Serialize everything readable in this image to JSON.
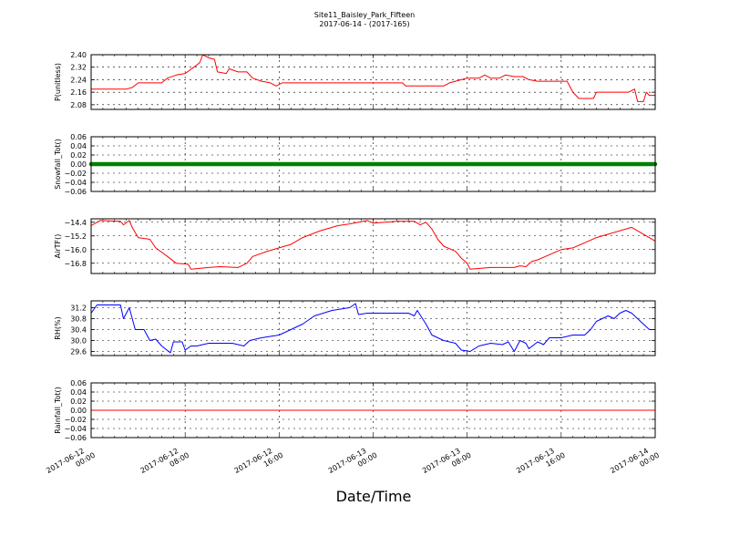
{
  "title_line1": "Site11_Baisley_Park_Fifteen",
  "title_line2": "2017-06-14 - (2017-165)",
  "chart_data": {
    "type": "line",
    "xlabel": "Date/Time",
    "x_range": [
      "2017-06-12 00:00",
      "2017-06-14 00:00"
    ],
    "x_ticks": [
      [
        "2017-06-12",
        "00:00"
      ],
      [
        "2017-06-12",
        "08:00"
      ],
      [
        "2017-06-12",
        "16:00"
      ],
      [
        "2017-06-13",
        "00:00"
      ],
      [
        "2017-06-13",
        "08:00"
      ],
      [
        "2017-06-13",
        "16:00"
      ],
      [
        "2017-06-14",
        "00:00"
      ]
    ],
    "grid": true,
    "panels": [
      {
        "ylabel": "P(unitless)",
        "ylim": [
          2.05,
          2.4
        ],
        "yticks": [
          "2.40",
          "2.32",
          "2.24",
          "2.16",
          "2.08"
        ],
        "color": "#ff0000",
        "points": [
          [
            "2017-06-12 00:00",
            2.18
          ],
          [
            "2017-06-12 03:00",
            2.18
          ],
          [
            "2017-06-12 03:30",
            2.19
          ],
          [
            "2017-06-12 04:00",
            2.22
          ],
          [
            "2017-06-12 06:00",
            2.22
          ],
          [
            "2017-06-12 06:30",
            2.25
          ],
          [
            "2017-06-12 07:15",
            2.27
          ],
          [
            "2017-06-12 08:00",
            2.28
          ],
          [
            "2017-06-12 08:45",
            2.32
          ],
          [
            "2017-06-12 09:15",
            2.35
          ],
          [
            "2017-06-12 09:30",
            2.4
          ],
          [
            "2017-06-12 10:00",
            2.38
          ],
          [
            "2017-06-12 10:30",
            2.37
          ],
          [
            "2017-06-12 10:45",
            2.29
          ],
          [
            "2017-06-12 11:30",
            2.28
          ],
          [
            "2017-06-12 11:45",
            2.31
          ],
          [
            "2017-06-12 12:30",
            2.29
          ],
          [
            "2017-06-12 13:15",
            2.29
          ],
          [
            "2017-06-12 13:45",
            2.25
          ],
          [
            "2017-06-12 14:30",
            2.23
          ],
          [
            "2017-06-12 15:15",
            2.22
          ],
          [
            "2017-06-12 15:45",
            2.2
          ],
          [
            "2017-06-12 16:15",
            2.22
          ],
          [
            "2017-06-12 20:00",
            2.22
          ],
          [
            "2017-06-13 02:30",
            2.22
          ],
          [
            "2017-06-13 02:45",
            2.2
          ],
          [
            "2017-06-13 06:00",
            2.2
          ],
          [
            "2017-06-13 06:30",
            2.22
          ],
          [
            "2017-06-13 07:30",
            2.24
          ],
          [
            "2017-06-13 08:00",
            2.25
          ],
          [
            "2017-06-13 09:00",
            2.25
          ],
          [
            "2017-06-13 09:30",
            2.27
          ],
          [
            "2017-06-13 10:00",
            2.25
          ],
          [
            "2017-06-13 10:45",
            2.25
          ],
          [
            "2017-06-13 11:15",
            2.27
          ],
          [
            "2017-06-13 12:00",
            2.26
          ],
          [
            "2017-06-13 12:45",
            2.26
          ],
          [
            "2017-06-13 13:15",
            2.24
          ],
          [
            "2017-06-13 14:00",
            2.23
          ],
          [
            "2017-06-13 16:30",
            2.23
          ],
          [
            "2017-06-13 17:00",
            2.16
          ],
          [
            "2017-06-13 17:30",
            2.12
          ],
          [
            "2017-06-13 18:45",
            2.12
          ],
          [
            "2017-06-13 19:00",
            2.16
          ],
          [
            "2017-06-13 21:45",
            2.16
          ],
          [
            "2017-06-13 22:15",
            2.18
          ],
          [
            "2017-06-13 22:30",
            2.1
          ],
          [
            "2017-06-13 23:00",
            2.1
          ],
          [
            "2017-06-13 23:15",
            2.16
          ],
          [
            "2017-06-13 23:30",
            2.14
          ],
          [
            "2017-06-14 00:00",
            2.14
          ]
        ]
      },
      {
        "ylabel": "Snowfall_Tot()",
        "ylim": [
          -0.06,
          0.06
        ],
        "yticks": [
          "0.06",
          "0.04",
          "0.02",
          "0.00",
          "−0.02",
          "−0.04",
          "−0.06"
        ],
        "color": "#008000",
        "marker": "dot",
        "points": [
          [
            "2017-06-12 00:00",
            0.0
          ],
          [
            "2017-06-14 00:00",
            0.0
          ]
        ]
      },
      {
        "ylabel": "AirTF()",
        "ylim": [
          -17.4,
          -14.2
        ],
        "yticks": [
          "−14.4",
          "−15.2",
          "−16.0",
          "−16.8"
        ],
        "color": "#ff0000",
        "points": [
          [
            "2017-06-12 00:00",
            -14.6
          ],
          [
            "2017-06-12 00:45",
            -14.3
          ],
          [
            "2017-06-12 02:30",
            -14.35
          ],
          [
            "2017-06-12 02:45",
            -14.55
          ],
          [
            "2017-06-12 03:15",
            -14.3
          ],
          [
            "2017-06-12 03:30",
            -14.7
          ],
          [
            "2017-06-12 04:00",
            -15.3
          ],
          [
            "2017-06-12 05:00",
            -15.4
          ],
          [
            "2017-06-12 05:30",
            -15.9
          ],
          [
            "2017-06-12 06:30",
            -16.4
          ],
          [
            "2017-06-12 07:15",
            -16.8
          ],
          [
            "2017-06-12 08:15",
            -16.85
          ],
          [
            "2017-06-12 08:30",
            -17.15
          ],
          [
            "2017-06-12 10:00",
            -17.05
          ],
          [
            "2017-06-12 11:00",
            -17.0
          ],
          [
            "2017-06-12 12:30",
            -17.05
          ],
          [
            "2017-06-12 13:15",
            -16.8
          ],
          [
            "2017-06-12 13:45",
            -16.4
          ],
          [
            "2017-06-12 15:00",
            -16.1
          ],
          [
            "2017-06-12 16:00",
            -15.9
          ],
          [
            "2017-06-12 17:00",
            -15.7
          ],
          [
            "2017-06-12 18:00",
            -15.3
          ],
          [
            "2017-06-12 19:30",
            -14.9
          ],
          [
            "2017-06-12 21:00",
            -14.6
          ],
          [
            "2017-06-12 22:00",
            -14.5
          ],
          [
            "2017-06-12 23:30",
            -14.3
          ],
          [
            "2017-06-13 00:00",
            -14.45
          ],
          [
            "2017-06-13 02:00",
            -14.35
          ],
          [
            "2017-06-13 03:30",
            -14.35
          ],
          [
            "2017-06-13 04:00",
            -14.55
          ],
          [
            "2017-06-13 04:30",
            -14.4
          ],
          [
            "2017-06-13 05:00",
            -14.8
          ],
          [
            "2017-06-13 05:30",
            -15.4
          ],
          [
            "2017-06-13 06:00",
            -15.8
          ],
          [
            "2017-06-13 07:00",
            -16.1
          ],
          [
            "2017-06-13 07:30",
            -16.5
          ],
          [
            "2017-06-13 08:00",
            -16.8
          ],
          [
            "2017-06-13 08:15",
            -17.15
          ],
          [
            "2017-06-13 10:00",
            -17.05
          ],
          [
            "2017-06-13 12:00",
            -17.05
          ],
          [
            "2017-06-13 12:30",
            -16.95
          ],
          [
            "2017-06-13 13:00",
            -17.0
          ],
          [
            "2017-06-13 13:30",
            -16.7
          ],
          [
            "2017-06-13 14:00",
            -16.6
          ],
          [
            "2017-06-13 15:00",
            -16.3
          ],
          [
            "2017-06-13 16:00",
            -16.0
          ],
          [
            "2017-06-13 17:00",
            -15.9
          ],
          [
            "2017-06-13 18:00",
            -15.6
          ],
          [
            "2017-06-13 19:00",
            -15.3
          ],
          [
            "2017-06-13 20:00",
            -15.1
          ],
          [
            "2017-06-13 21:00",
            -14.9
          ],
          [
            "2017-06-13 22:00",
            -14.7
          ],
          [
            "2017-06-13 23:00",
            -15.1
          ],
          [
            "2017-06-14 00:00",
            -15.5
          ]
        ]
      },
      {
        "ylabel": "RH(%)",
        "ylim": [
          29.45,
          31.45
        ],
        "yticks": [
          "31.2",
          "30.8",
          "30.4",
          "30.0",
          "29.6"
        ],
        "color": "#0000ff",
        "points": [
          [
            "2017-06-12 00:00",
            31.0
          ],
          [
            "2017-06-12 00:30",
            31.3
          ],
          [
            "2017-06-12 02:30",
            31.3
          ],
          [
            "2017-06-12 02:45",
            30.8
          ],
          [
            "2017-06-12 03:15",
            31.2
          ],
          [
            "2017-06-12 03:45",
            30.4
          ],
          [
            "2017-06-12 04:30",
            30.4
          ],
          [
            "2017-06-12 05:00",
            30.0
          ],
          [
            "2017-06-12 05:30",
            30.05
          ],
          [
            "2017-06-12 06:00",
            29.8
          ],
          [
            "2017-06-12 06:45",
            29.55
          ],
          [
            "2017-06-12 07:00",
            29.95
          ],
          [
            "2017-06-12 07:45",
            29.95
          ],
          [
            "2017-06-12 08:00",
            29.65
          ],
          [
            "2017-06-12 08:30",
            29.8
          ],
          [
            "2017-06-12 09:00",
            29.8
          ],
          [
            "2017-06-12 10:00",
            29.9
          ],
          [
            "2017-06-12 12:00",
            29.9
          ],
          [
            "2017-06-12 13:00",
            29.8
          ],
          [
            "2017-06-12 13:30",
            30.0
          ],
          [
            "2017-06-12 14:30",
            30.1
          ],
          [
            "2017-06-12 16:00",
            30.2
          ],
          [
            "2017-06-12 17:00",
            30.4
          ],
          [
            "2017-06-12 18:00",
            30.6
          ],
          [
            "2017-06-12 19:00",
            30.9
          ],
          [
            "2017-06-12 20:30",
            31.1
          ],
          [
            "2017-06-12 22:00",
            31.2
          ],
          [
            "2017-06-12 22:30",
            31.35
          ],
          [
            "2017-06-12 22:45",
            30.95
          ],
          [
            "2017-06-12 23:30",
            31.0
          ],
          [
            "2017-06-13 01:00",
            31.0
          ],
          [
            "2017-06-13 03:00",
            31.0
          ],
          [
            "2017-06-13 03:30",
            30.9
          ],
          [
            "2017-06-13 03:45",
            31.1
          ],
          [
            "2017-06-13 04:30",
            30.6
          ],
          [
            "2017-06-13 05:00",
            30.2
          ],
          [
            "2017-06-13 06:00",
            30.0
          ],
          [
            "2017-06-13 07:00",
            29.9
          ],
          [
            "2017-06-13 07:30",
            29.65
          ],
          [
            "2017-06-13 08:15",
            29.6
          ],
          [
            "2017-06-13 09:00",
            29.8
          ],
          [
            "2017-06-13 10:00",
            29.9
          ],
          [
            "2017-06-13 11:00",
            29.85
          ],
          [
            "2017-06-13 11:30",
            29.95
          ],
          [
            "2017-06-13 12:00",
            29.6
          ],
          [
            "2017-06-13 12:30",
            30.0
          ],
          [
            "2017-06-13 13:00",
            29.9
          ],
          [
            "2017-06-13 13:15",
            29.7
          ],
          [
            "2017-06-13 14:00",
            29.95
          ],
          [
            "2017-06-13 14:30",
            29.85
          ],
          [
            "2017-06-13 15:00",
            30.1
          ],
          [
            "2017-06-13 16:00",
            30.1
          ],
          [
            "2017-06-13 17:00",
            30.2
          ],
          [
            "2017-06-13 18:00",
            30.2
          ],
          [
            "2017-06-13 18:30",
            30.4
          ],
          [
            "2017-06-13 19:00",
            30.7
          ],
          [
            "2017-06-13 20:00",
            30.9
          ],
          [
            "2017-06-13 20:30",
            30.8
          ],
          [
            "2017-06-13 21:00",
            31.0
          ],
          [
            "2017-06-13 21:30",
            31.1
          ],
          [
            "2017-06-13 22:00",
            31.0
          ],
          [
            "2017-06-13 23:00",
            30.6
          ],
          [
            "2017-06-13 23:30",
            30.4
          ],
          [
            "2017-06-14 00:00",
            30.4
          ]
        ]
      },
      {
        "ylabel": "Rainfall_Tot()",
        "ylim": [
          -0.06,
          0.06
        ],
        "yticks": [
          "0.06",
          "0.04",
          "0.02",
          "0.00",
          "−0.02",
          "−0.04",
          "−0.06"
        ],
        "color": "#ff0000",
        "points": [
          [
            "2017-06-12 00:00",
            0.0
          ],
          [
            "2017-06-14 00:00",
            0.0
          ]
        ]
      }
    ]
  }
}
